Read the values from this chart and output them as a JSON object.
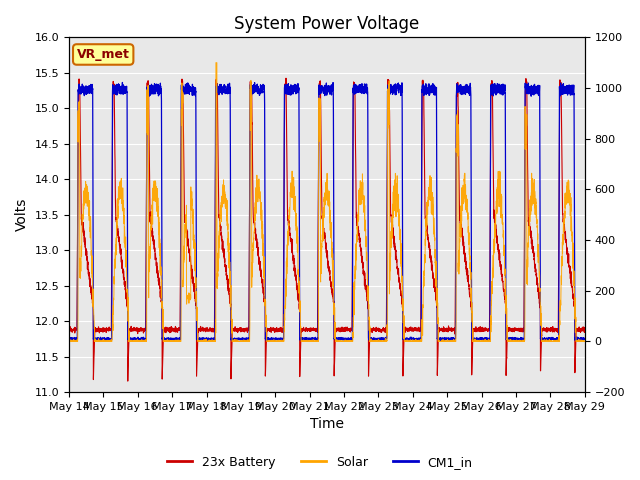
{
  "title": "System Power Voltage",
  "xlabel": "Time",
  "ylabel_left": "Volts",
  "ylim_left": [
    11.0,
    16.0
  ],
  "ylim_right": [
    -200,
    1200
  ],
  "x_tick_labels": [
    "May 14",
    "May 15",
    "May 16",
    "May 17",
    "May 18",
    "May 19",
    "May 20",
    "May 21",
    "May 22",
    "May 23",
    "May 24",
    "May 25",
    "May 26",
    "May 27",
    "May 28",
    "May 29"
  ],
  "num_days": 15,
  "annotation_text": "VR_met",
  "bg_color": "#e8e8e8",
  "fig_color": "#ffffff",
  "color_battery": "#cc0000",
  "color_solar": "#ffa500",
  "color_cm1": "#0000cc",
  "legend_labels": [
    "23x Battery",
    "Solar",
    "CM1_in"
  ],
  "title_fontsize": 12,
  "label_fontsize": 10,
  "tick_fontsize": 8,
  "yticks_right": [
    -200,
    0,
    200,
    400,
    600,
    800,
    1000,
    1200
  ],
  "yticks_left": [
    11.0,
    11.5,
    12.0,
    12.5,
    13.0,
    13.5,
    14.0,
    14.5,
    15.0,
    15.5,
    16.0
  ]
}
